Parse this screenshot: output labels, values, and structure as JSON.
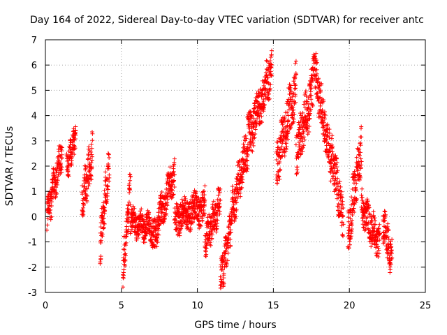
{
  "chart_data": {
    "type": "scatter",
    "title": "Day 164 of 2022, Sidereal Day-to-day VTEC variation (SDTVAR) for receiver antc",
    "xlabel": "GPS time / hours",
    "ylabel": "SDTVAR / TECUs",
    "xlim": [
      0,
      25
    ],
    "ylim": [
      -3,
      7
    ],
    "xticks": [
      "0",
      "5",
      "10",
      "15",
      "20",
      "25"
    ],
    "yticks": [
      "-3",
      "-2",
      "-1",
      "0",
      "1",
      "2",
      "3",
      "4",
      "5",
      "6",
      "7"
    ],
    "marker": "+",
    "color": "#ff0000",
    "grid": true,
    "series": [
      {
        "name": "SDTVAR",
        "segments": [
          {
            "x0": 0.1,
            "x1": 1.1,
            "y0": 0.0,
            "y1": 2.6,
            "jitter": 1.2
          },
          {
            "x0": 1.4,
            "x1": 2.0,
            "y0": 2.0,
            "y1": 3.2,
            "jitter": 1.0
          },
          {
            "x0": 2.4,
            "x1": 3.1,
            "y0": 0.5,
            "y1": 2.5,
            "jitter": 1.4
          },
          {
            "x0": 3.6,
            "x1": 4.2,
            "y0": -1.0,
            "y1": 2.0,
            "jitter": 1.5
          },
          {
            "x0": 5.1,
            "x1": 5.6,
            "y0": -2.2,
            "y1": 1.3,
            "jitter": 1.2
          },
          {
            "x0": 5.6,
            "x1": 7.0,
            "y0": -0.2,
            "y1": -0.5,
            "jitter": 0.9
          },
          {
            "x0": 7.0,
            "x1": 8.5,
            "y0": -1.0,
            "y1": 1.8,
            "jitter": 1.2
          },
          {
            "x0": 8.5,
            "x1": 10.5,
            "y0": 0.0,
            "y1": 0.4,
            "jitter": 1.2
          },
          {
            "x0": 10.5,
            "x1": 11.5,
            "y0": -1.0,
            "y1": 0.6,
            "jitter": 1.2
          },
          {
            "x0": 11.5,
            "x1": 12.2,
            "y0": -2.6,
            "y1": -0.5,
            "jitter": 1.2
          },
          {
            "x0": 12.2,
            "x1": 13.3,
            "y0": 0.0,
            "y1": 2.8,
            "jitter": 1.4
          },
          {
            "x0": 13.3,
            "x1": 14.9,
            "y0": 3.0,
            "y1": 5.9,
            "jitter": 1.6
          },
          {
            "x0": 15.2,
            "x1": 16.5,
            "y0": 2.0,
            "y1": 5.2,
            "jitter": 1.8
          },
          {
            "x0": 16.5,
            "x1": 17.6,
            "y0": 2.5,
            "y1": 5.0,
            "jitter": 1.8
          },
          {
            "x0": 17.6,
            "x1": 18.8,
            "y0": 6.2,
            "y1": 2.2,
            "jitter": 1.6
          },
          {
            "x0": 18.8,
            "x1": 19.6,
            "y0": 2.5,
            "y1": 0.0,
            "jitter": 1.6
          },
          {
            "x0": 19.9,
            "x1": 20.8,
            "y0": -0.8,
            "y1": 2.9,
            "jitter": 1.8
          },
          {
            "x0": 20.8,
            "x1": 22.0,
            "y0": 0.4,
            "y1": -1.1,
            "jitter": 1.2
          },
          {
            "x0": 22.2,
            "x1": 22.8,
            "y0": -0.2,
            "y1": -1.7,
            "jitter": 1.2
          }
        ]
      }
    ]
  }
}
